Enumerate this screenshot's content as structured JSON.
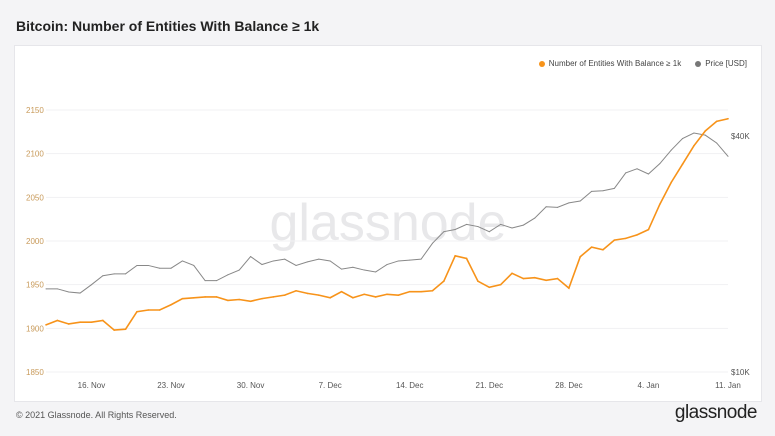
{
  "title": "Bitcoin: Number of Entities With Balance ≥ 1k",
  "footer": "© 2021 Glassnode. All Rights Reserved.",
  "logo": "glassnode",
  "watermark": "glassnode",
  "chart_data": {
    "type": "line",
    "title": "Bitcoin: Number of Entities With Balance ≥ 1k",
    "legend_position": "top-right",
    "grid": true,
    "x": [
      "2020-11-12",
      "2020-11-13",
      "2020-11-14",
      "2020-11-15",
      "2020-11-16",
      "2020-11-17",
      "2020-11-18",
      "2020-11-19",
      "2020-11-20",
      "2020-11-21",
      "2020-11-22",
      "2020-11-23",
      "2020-11-24",
      "2020-11-25",
      "2020-11-26",
      "2020-11-27",
      "2020-11-28",
      "2020-11-29",
      "2020-11-30",
      "2020-12-01",
      "2020-12-02",
      "2020-12-03",
      "2020-12-04",
      "2020-12-05",
      "2020-12-06",
      "2020-12-07",
      "2020-12-08",
      "2020-12-09",
      "2020-12-10",
      "2020-12-11",
      "2020-12-12",
      "2020-12-13",
      "2020-12-14",
      "2020-12-15",
      "2020-12-16",
      "2020-12-17",
      "2020-12-18",
      "2020-12-19",
      "2020-12-20",
      "2020-12-21",
      "2020-12-22",
      "2020-12-23",
      "2020-12-24",
      "2020-12-25",
      "2020-12-26",
      "2020-12-27",
      "2020-12-28",
      "2020-12-29",
      "2020-12-30",
      "2020-12-31",
      "2021-01-01",
      "2021-01-02",
      "2021-01-03",
      "2021-01-04",
      "2021-01-05",
      "2021-01-06",
      "2021-01-07",
      "2021-01-08",
      "2021-01-09",
      "2021-01-10",
      "2021-01-11"
    ],
    "x_ticks": [
      "16. Nov",
      "23. Nov",
      "30. Nov",
      "7. Dec",
      "14. Dec",
      "21. Dec",
      "28. Dec",
      "4. Jan",
      "11. Jan"
    ],
    "x_tick_dates": [
      "2020-11-16",
      "2020-11-23",
      "2020-11-30",
      "2020-12-07",
      "2020-12-14",
      "2020-12-21",
      "2020-12-28",
      "2021-01-04",
      "2021-01-11"
    ],
    "y_left": {
      "ylim": [
        1850,
        2150
      ],
      "ticks": [
        "1850",
        "1900",
        "1950",
        "2000",
        "2050",
        "2100",
        "2150"
      ],
      "color": "#c89a5a"
    },
    "y_right": {
      "scale": "log",
      "ylim": [
        10000,
        40000
      ],
      "ticks": [
        "$10K",
        "$40K"
      ]
    },
    "series": [
      {
        "name": "Number of Entities With Balance ≥ 1k",
        "color": "#f7931a",
        "axis": "left",
        "values": [
          1904,
          1909,
          1905,
          1907,
          1907,
          1909,
          1898,
          1899,
          1919,
          1921,
          1921,
          1927,
          1934,
          1935,
          1936,
          1936,
          1932,
          1933,
          1931,
          1934,
          1936,
          1938,
          1943,
          1940,
          1938,
          1935,
          1942,
          1935,
          1939,
          1936,
          1939,
          1938,
          1942,
          1942,
          1943,
          1954,
          1983,
          1980,
          1954,
          1947,
          1950,
          1963,
          1957,
          1958,
          1955,
          1957,
          1946,
          1982,
          1993,
          1990,
          2001,
          2003,
          2007,
          2013,
          2042,
          2067,
          2088,
          2109,
          2126,
          2137,
          2140
        ]
      },
      {
        "name": "Price [USD]",
        "color": "#888888",
        "axis": "right",
        "values": [
          16300,
          16300,
          16000,
          15900,
          16700,
          17600,
          17800,
          17800,
          18700,
          18700,
          18400,
          18400,
          19200,
          18700,
          17100,
          17100,
          17700,
          18200,
          19700,
          18800,
          19200,
          19400,
          18700,
          19100,
          19400,
          19200,
          18300,
          18500,
          18200,
          18000,
          18800,
          19200,
          19300,
          19400,
          21300,
          22800,
          23100,
          23800,
          23500,
          22800,
          23800,
          23300,
          23700,
          24700,
          26400,
          26300,
          27000,
          27300,
          28900,
          29000,
          29400,
          32200,
          33000,
          32000,
          34000,
          36800,
          39400,
          40700,
          40200,
          38400,
          35500
        ]
      }
    ]
  }
}
